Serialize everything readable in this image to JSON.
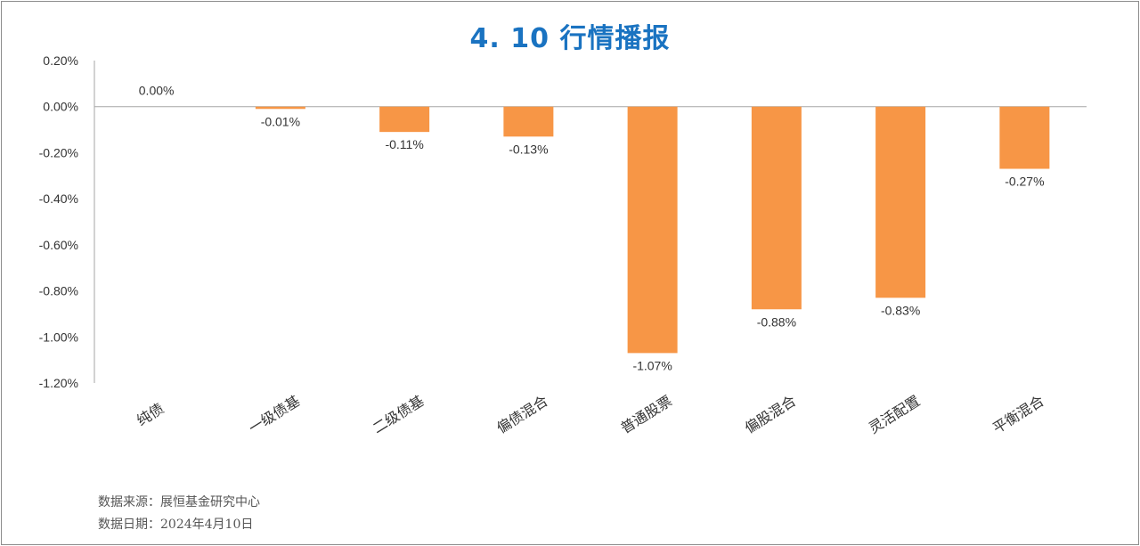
{
  "chart_data": {
    "type": "bar",
    "title": "4. 10 行情播报",
    "categories": [
      "纯债",
      "一级债基",
      "二级债基",
      "偏债混合",
      "普通股票",
      "偏股混合",
      "灵活配置",
      "平衡混合"
    ],
    "values": [
      0.0,
      -0.01,
      -0.11,
      -0.13,
      -1.07,
      -0.88,
      -0.83,
      -0.27
    ],
    "value_labels": [
      "0.00%",
      "-0.01%",
      "-0.11%",
      "-0.13%",
      "-1.07%",
      "-0.88%",
      "-0.83%",
      "-0.27%"
    ],
    "y_ticks": [
      "0.20%",
      "0.00%",
      "-0.20%",
      "-0.40%",
      "-0.60%",
      "-0.80%",
      "-1.00%",
      "-1.20%"
    ],
    "ylim": [
      -1.2,
      0.2
    ],
    "bar_color": "#f79646",
    "xlabel": "",
    "ylabel": "",
    "legend": "none",
    "grid": false
  },
  "footer": {
    "source": "数据来源：展恒基金研究中心",
    "date": "数据日期：2024年4月10日"
  }
}
